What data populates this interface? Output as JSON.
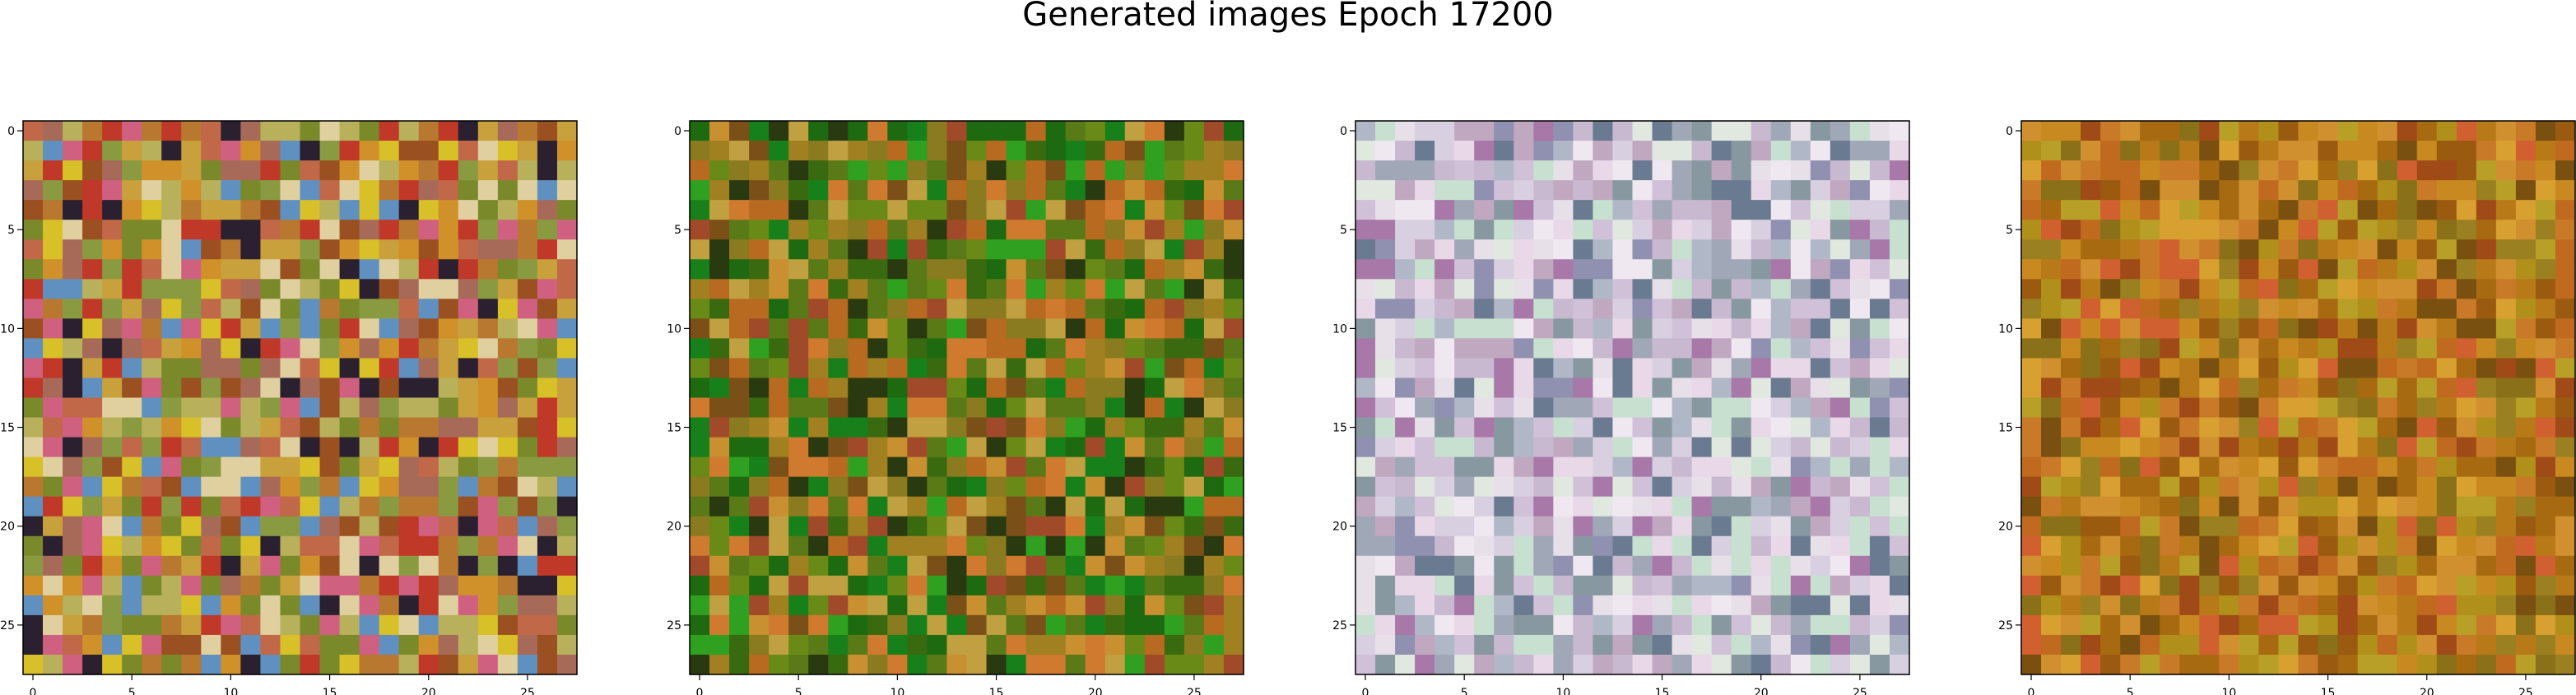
{
  "title": "Generated images Epoch 17200",
  "chart_data": {
    "type": "heatmap",
    "title": "Generated images Epoch 17200",
    "panels": [
      {
        "name": "",
        "grid": [
          28,
          28
        ],
        "xlim": [
          0,
          27
        ],
        "ylim": [
          27,
          0
        ],
        "xticks": [
          0,
          5,
          10,
          15,
          20,
          25
        ],
        "yticks": [
          0,
          5,
          10,
          15,
          20,
          25
        ],
        "palette": [
          "#c8a03c",
          "#b87830",
          "#d0902a",
          "#c06848",
          "#a86a58",
          "#b8b05a",
          "#d8c028",
          "#7a8a2a",
          "#9a5020",
          "#e0d0a0",
          "#c03828",
          "#2a2030",
          "#d06080",
          "#6090c0",
          "#8a9a40"
        ],
        "seed": 11
      },
      {
        "name": "",
        "grid": [
          28,
          28
        ],
        "xlim": [
          0,
          27
        ],
        "ylim": [
          27,
          0
        ],
        "xticks": [
          0,
          5,
          10,
          15,
          20,
          25
        ],
        "yticks": [
          0,
          5,
          10,
          15,
          20,
          25
        ],
        "palette": [
          "#5a7a18",
          "#8a7a20",
          "#3a6a10",
          "#1e6a10",
          "#a08020",
          "#c89030",
          "#6a8a18",
          "#18801a",
          "#7a5018",
          "#b86a20",
          "#2a3a10",
          "#a04a2a",
          "#c0a040",
          "#d07a30",
          "#30a020"
        ],
        "seed": 23
      },
      {
        "name": "",
        "grid": [
          28,
          28
        ],
        "xlim": [
          0,
          27
        ],
        "ylim": [
          27,
          0
        ],
        "xticks": [
          0,
          5,
          10,
          15,
          20,
          25
        ],
        "yticks": [
          0,
          5,
          10,
          15,
          20,
          25
        ],
        "palette": [
          "#d8d0e0",
          "#c8b8d0",
          "#e8e0e8",
          "#b0b8c8",
          "#c0a8c0",
          "#a0a8b8",
          "#e0e8e0",
          "#d0c0d8",
          "#9090b0",
          "#c8e0d0",
          "#a878a8",
          "#6a7a90",
          "#e8d8e8",
          "#8898a0",
          "#f0e8f0"
        ],
        "seed": 37
      },
      {
        "name": "",
        "grid": [
          28,
          28
        ],
        "xlim": [
          0,
          27
        ],
        "ylim": [
          27,
          0
        ],
        "xticks": [
          0,
          5,
          10,
          15,
          20,
          25
        ],
        "yticks": [
          0,
          5,
          10,
          15,
          20,
          25
        ],
        "palette": [
          "#b87a18",
          "#c88a20",
          "#a86a10",
          "#d09030",
          "#9a5a10",
          "#b0901a",
          "#c06a20",
          "#8a7018",
          "#d8a030",
          "#a04a18",
          "#c87a28",
          "#7a5010",
          "#b8a028",
          "#d06030",
          "#9a8020"
        ],
        "seed": 53
      }
    ]
  }
}
